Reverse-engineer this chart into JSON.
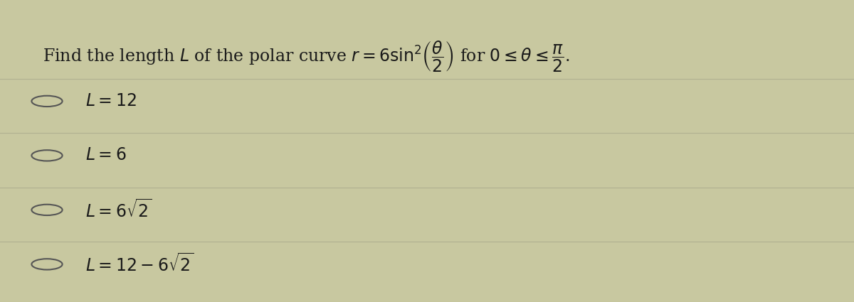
{
  "background_color": "#c8c8a0",
  "panel_color": "#d4d4b0",
  "question_text": "Find the length $\\mathit{L}$ of the polar curve $r = 6\\sin^2\\!\\left(\\dfrac{\\theta}{2}\\right)$ for $0 \\leq \\theta \\leq \\dfrac{\\pi}{2}$.",
  "options": [
    "$L = 12$",
    "$L = 6$",
    "$L = 6\\sqrt{2}$",
    "$L = 12 - 6\\sqrt{2}$"
  ],
  "text_color": "#1a1a1a",
  "question_fontsize": 17,
  "option_fontsize": 17,
  "divider_color": "#b0b090",
  "circle_color": "#555555"
}
